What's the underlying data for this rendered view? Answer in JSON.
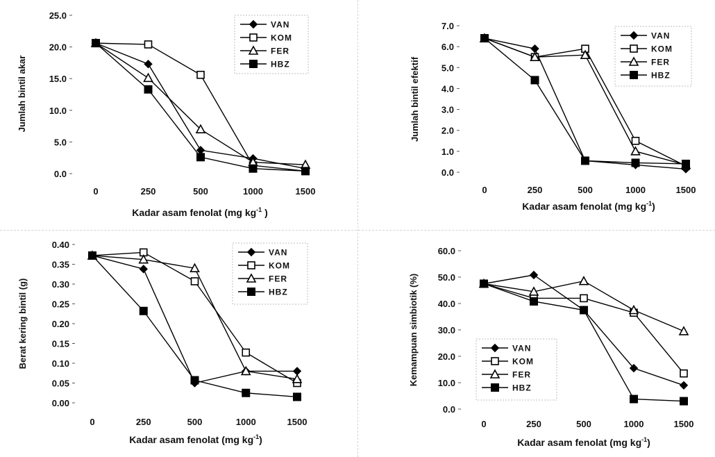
{
  "chart_data": [
    {
      "type": "line",
      "categories": [
        "0",
        "250",
        "500",
        "1000",
        "1500"
      ],
      "ylabel": "Jumlah bintil akar",
      "xlabel_prefix": "Kadar asam fenolat (mg kg",
      "xlabel_sup": "-1",
      "xlabel_suffix": " )",
      "ylim": [
        0,
        25
      ],
      "yticks": [
        "0.0",
        "5.0",
        "10.0",
        "15.0",
        "20.0",
        "25.0"
      ],
      "legend_position": "top-right",
      "series": [
        {
          "name": "VAN",
          "marker": "diamond",
          "values": [
            20.6,
            17.3,
            3.7,
            2.4,
            0.8
          ]
        },
        {
          "name": "KOM",
          "marker": "square-open",
          "values": [
            20.6,
            20.4,
            15.6,
            1.3,
            0.4
          ]
        },
        {
          "name": "FER",
          "marker": "triangle-open",
          "values": [
            20.6,
            15.1,
            7.0,
            1.8,
            1.4
          ]
        },
        {
          "name": "HBZ",
          "marker": "square",
          "values": [
            20.6,
            13.3,
            2.6,
            0.8,
            0.4
          ]
        }
      ]
    },
    {
      "type": "line",
      "categories": [
        "0",
        "250",
        "500",
        "1000",
        "1500"
      ],
      "ylabel": "Jumlah bintil efektif",
      "xlabel_prefix": "Kadar asam fenolat (mg kg",
      "xlabel_sup": "-1",
      "xlabel_suffix": ")",
      "ylim": [
        0,
        7
      ],
      "yticks": [
        "0.0",
        "1.0",
        "2.0",
        "3.0",
        "4.0",
        "5.0",
        "6.0",
        "7.0"
      ],
      "legend_position": "top-right",
      "series": [
        {
          "name": "VAN",
          "marker": "diamond",
          "values": [
            6.4,
            5.9,
            0.55,
            0.35,
            0.15
          ]
        },
        {
          "name": "KOM",
          "marker": "square-open",
          "values": [
            6.4,
            5.5,
            5.9,
            1.5,
            0.3
          ]
        },
        {
          "name": "FER",
          "marker": "triangle-open",
          "values": [
            6.4,
            5.5,
            5.6,
            1.0,
            0.35
          ]
        },
        {
          "name": "HBZ",
          "marker": "square",
          "values": [
            6.4,
            4.4,
            0.55,
            0.45,
            0.4
          ]
        }
      ]
    },
    {
      "type": "line",
      "categories": [
        "0",
        "250",
        "500",
        "1000",
        "1500"
      ],
      "ylabel": "Berat kering bintil (g)",
      "xlabel_prefix": "Kadar asam fenolat (mg kg",
      "xlabel_sup": "-1",
      "xlabel_suffix": ")",
      "ylim": [
        0,
        0.4
      ],
      "yticks": [
        "0.00",
        "0.05",
        "0.10",
        "0.15",
        "0.20",
        "0.25",
        "0.30",
        "0.35",
        "0.40"
      ],
      "legend_position": "top-right",
      "series": [
        {
          "name": "VAN",
          "marker": "diamond",
          "values": [
            0.372,
            0.338,
            0.05,
            0.08,
            0.08
          ]
        },
        {
          "name": "KOM",
          "marker": "square-open",
          "values": [
            0.372,
            0.38,
            0.307,
            0.127,
            0.05
          ]
        },
        {
          "name": "FER",
          "marker": "triangle-open",
          "values": [
            0.372,
            0.362,
            0.34,
            0.08,
            0.06
          ]
        },
        {
          "name": "HBZ",
          "marker": "square",
          "values": [
            0.372,
            0.232,
            0.057,
            0.025,
            0.015
          ]
        }
      ]
    },
    {
      "type": "line",
      "categories": [
        "0",
        "250",
        "500",
        "1000",
        "1500"
      ],
      "ylabel": "Kemampuan simbiotik (%)",
      "xlabel_prefix": "Kadar asam fenolat (mg kg",
      "xlabel_sup": "-1",
      "xlabel_suffix": ")",
      "ylim": [
        0,
        60
      ],
      "yticks": [
        "0.0",
        "10.0",
        "20.0",
        "30.0",
        "40.0",
        "50.0",
        "60.0"
      ],
      "legend_position": "bottom-left",
      "series": [
        {
          "name": "VAN",
          "marker": "diamond",
          "values": [
            47.5,
            50.8,
            37.5,
            15.5,
            9.0
          ]
        },
        {
          "name": "KOM",
          "marker": "square-open",
          "values": [
            47.5,
            42.0,
            42.0,
            36.5,
            13.5
          ]
        },
        {
          "name": "FER",
          "marker": "triangle-open",
          "values": [
            47.5,
            44.5,
            48.5,
            37.5,
            29.5
          ]
        },
        {
          "name": "HBZ",
          "marker": "square",
          "values": [
            47.5,
            40.8,
            37.5,
            3.8,
            3.0
          ]
        }
      ]
    }
  ]
}
